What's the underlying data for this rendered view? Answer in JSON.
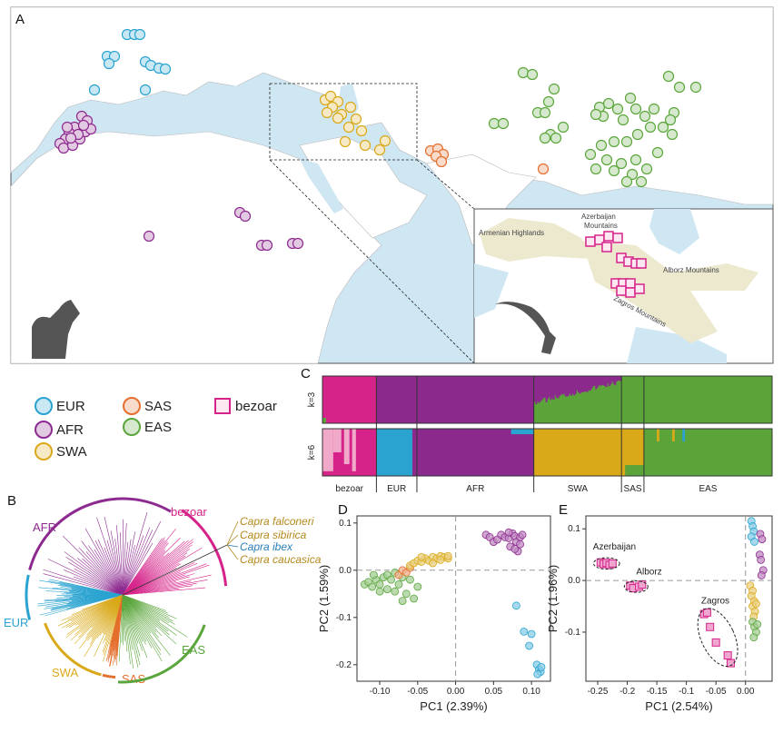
{
  "panels": {
    "a": "A",
    "b": "B",
    "c": "C",
    "d": "D",
    "e": "E"
  },
  "colors": {
    "EUR": "#2aa3d0",
    "AFR": "#8d2a8f",
    "SWA": "#d9a919",
    "SAS": "#e4702e",
    "EAS": "#5ba63c",
    "bezoar": "#d6238a",
    "bezoar_light": "#f0a9c8",
    "admix_afr": "#8b2a8c",
    "admix_green": "#5aa43a",
    "land": "#ffffff",
    "sea": "#cfe6f3",
    "highland": "#ece9cf"
  },
  "legend": {
    "items": [
      {
        "key": "EUR",
        "label": "EUR",
        "shape": "circle"
      },
      {
        "key": "AFR",
        "label": "AFR",
        "shape": "circle"
      },
      {
        "key": "SWA",
        "label": "SWA",
        "shape": "circle"
      },
      {
        "key": "SAS",
        "label": "SAS",
        "shape": "circle"
      },
      {
        "key": "EAS",
        "label": "EAS",
        "shape": "circle"
      },
      {
        "key": "bezoar",
        "label": "bezoar",
        "shape": "square"
      }
    ]
  },
  "map": {
    "inset_labels": {
      "armenian": "Armenian Highlands",
      "azerbaijan_1": "Azerbaijan",
      "azerbaijan_2": "Mountains",
      "alborz": "Alborz Mountains",
      "zagros": "Zagros Mountains"
    }
  },
  "chart_data": [
    {
      "type": "tree",
      "panel": "B",
      "clades": [
        "AFR",
        "bezoar",
        "EUR",
        "SWA",
        "SAS",
        "EAS"
      ],
      "outgroups": [
        {
          "label": "Capra falconeri",
          "color": "#b5891c"
        },
        {
          "label": "Capra sibirica",
          "color": "#b5891c"
        },
        {
          "label": "Capra ibex",
          "color": "#2a7fb8"
        },
        {
          "label": "Capra caucasica",
          "color": "#b5891c"
        }
      ]
    },
    {
      "type": "admixture",
      "panel": "C",
      "rows": [
        "k=3",
        "k=6"
      ],
      "groups": [
        {
          "label": "bezoar",
          "fraction": 0.12
        },
        {
          "label": "EUR",
          "fraction": 0.09
        },
        {
          "label": "AFR",
          "fraction": 0.26
        },
        {
          "label": "SWA",
          "fraction": 0.195
        },
        {
          "label": "SAS",
          "fraction": 0.05
        },
        {
          "label": "EAS",
          "fraction": 0.285
        }
      ]
    },
    {
      "type": "scatter",
      "panel": "D",
      "xlabel": "PC1 (2.39%)",
      "ylabel": "PC2 (1.59%)",
      "xlim": [
        -0.13,
        0.125
      ],
      "ylim": [
        -0.235,
        0.115
      ],
      "xticks": [
        "-0.10",
        "-0.05",
        "0.00",
        "0.05",
        "0.10"
      ],
      "xtick_values": [
        -0.1,
        -0.05,
        0.0,
        0.05,
        0.1
      ],
      "yticks": [
        "0.1",
        "0.0",
        "-0.1",
        "-0.2"
      ],
      "ytick_values": [
        0.1,
        0.0,
        -0.1,
        -0.2
      ],
      "clusters": [
        {
          "group": "EAS",
          "points": [
            [
              -0.12,
              -0.03
            ],
            [
              -0.115,
              -0.025
            ],
            [
              -0.11,
              -0.035
            ],
            [
              -0.105,
              -0.02
            ],
            [
              -0.1,
              -0.03
            ],
            [
              -0.095,
              -0.015
            ],
            [
              -0.09,
              -0.04
            ],
            [
              -0.09,
              -0.01
            ],
            [
              -0.085,
              -0.02
            ],
            [
              -0.08,
              -0.045
            ],
            [
              -0.08,
              -0.005
            ],
            [
              -0.075,
              -0.03
            ],
            [
              -0.07,
              -0.015
            ],
            [
              -0.065,
              -0.05
            ],
            [
              -0.06,
              -0.02
            ],
            [
              -0.055,
              -0.06
            ],
            [
              -0.05,
              -0.035
            ],
            [
              -0.1,
              -0.045
            ],
            [
              -0.108,
              -0.01
            ],
            [
              -0.07,
              -0.065
            ]
          ]
        },
        {
          "group": "SAS",
          "points": [
            [
              -0.075,
              -0.01
            ],
            [
              -0.07,
              0.0
            ],
            [
              -0.065,
              -0.005
            ],
            [
              -0.06,
              0.005
            ]
          ]
        },
        {
          "group": "SWA",
          "points": [
            [
              -0.06,
              0.01
            ],
            [
              -0.055,
              0.015
            ],
            [
              -0.05,
              0.02
            ],
            [
              -0.045,
              0.018
            ],
            [
              -0.04,
              0.025
            ],
            [
              -0.035,
              0.02
            ],
            [
              -0.03,
              0.028
            ],
            [
              -0.025,
              0.025
            ],
            [
              -0.02,
              0.03
            ],
            [
              -0.015,
              0.028
            ],
            [
              -0.01,
              0.025
            ],
            [
              -0.01,
              0.03
            ],
            [
              -0.045,
              0.028
            ],
            [
              -0.03,
              0.015
            ],
            [
              -0.02,
              0.022
            ]
          ]
        },
        {
          "group": "AFR",
          "points": [
            [
              0.04,
              0.075
            ],
            [
              0.045,
              0.07
            ],
            [
              0.05,
              0.06
            ],
            [
              0.055,
              0.065
            ],
            [
              0.06,
              0.075
            ],
            [
              0.065,
              0.07
            ],
            [
              0.07,
              0.068
            ],
            [
              0.072,
              0.05
            ],
            [
              0.075,
              0.078
            ],
            [
              0.078,
              0.072
            ],
            [
              0.08,
              0.06
            ],
            [
              0.082,
              0.04
            ],
            [
              0.085,
              0.07
            ],
            [
              0.085,
              0.055
            ],
            [
              0.088,
              0.075
            ],
            [
              0.07,
              0.08
            ],
            [
              0.078,
              0.045
            ]
          ]
        },
        {
          "group": "EUR",
          "points": [
            [
              0.08,
              -0.075
            ],
            [
              0.09,
              -0.13
            ],
            [
              0.1,
              -0.135
            ],
            [
              0.097,
              -0.16
            ],
            [
              0.107,
              -0.2
            ],
            [
              0.11,
              -0.21
            ],
            [
              0.112,
              -0.215
            ],
            [
              0.108,
              -0.22
            ],
            [
              0.113,
              -0.205
            ]
          ]
        }
      ]
    },
    {
      "type": "scatter",
      "panel": "E",
      "ylabel": "PC2 (1.96%)",
      "xlabel": "PC1 (2.54%)",
      "xlim": [
        -0.27,
        0.045
      ],
      "ylim": [
        -0.195,
        0.125
      ],
      "xticks": [
        "-0.25",
        "-0.2",
        "-0.15",
        "-0.1",
        "-0.05",
        "0.00"
      ],
      "xtick_values": [
        -0.25,
        -0.2,
        -0.15,
        -0.1,
        -0.05,
        0.0
      ],
      "yticks": [
        "0.1",
        "0.0",
        "-0.1"
      ],
      "ytick_values": [
        0.1,
        0.0,
        -0.1
      ],
      "annotations": [
        "Azerbaijan",
        "Alborz",
        "Zagros"
      ],
      "clusters": [
        {
          "group": "bezoar",
          "points": [
            [
              -0.245,
              0.035
            ],
            [
              -0.24,
              0.032
            ],
            [
              -0.235,
              0.034
            ],
            [
              -0.23,
              0.03
            ],
            [
              -0.225,
              0.033
            ],
            [
              -0.195,
              -0.01
            ],
            [
              -0.19,
              -0.015
            ],
            [
              -0.18,
              -0.012
            ],
            [
              -0.175,
              -0.008
            ],
            [
              -0.07,
              -0.065
            ],
            [
              -0.065,
              -0.062
            ],
            [
              -0.06,
              -0.09
            ],
            [
              -0.05,
              -0.12
            ],
            [
              -0.03,
              -0.145
            ],
            [
              -0.025,
              -0.16
            ]
          ]
        },
        {
          "group": "EUR",
          "points": [
            [
              0.01,
              0.115
            ],
            [
              0.012,
              0.105
            ],
            [
              0.014,
              0.095
            ],
            [
              0.01,
              0.085
            ],
            [
              0.015,
              0.075
            ]
          ]
        },
        {
          "group": "AFR",
          "points": [
            [
              0.025,
              0.09
            ],
            [
              0.028,
              0.08
            ],
            [
              0.024,
              0.05
            ],
            [
              0.026,
              0.04
            ],
            [
              0.03,
              0.02
            ],
            [
              0.027,
              0.01
            ]
          ]
        },
        {
          "group": "SWA",
          "points": [
            [
              0.008,
              -0.01
            ],
            [
              0.012,
              -0.02
            ],
            [
              0.01,
              -0.03
            ],
            [
              0.015,
              -0.04
            ],
            [
              0.012,
              -0.05
            ],
            [
              0.016,
              -0.06
            ],
            [
              0.014,
              -0.07
            ],
            [
              0.018,
              -0.045
            ]
          ]
        },
        {
          "group": "EAS",
          "points": [
            [
              0.012,
              -0.08
            ],
            [
              0.015,
              -0.09
            ],
            [
              0.018,
              -0.1
            ],
            [
              0.014,
              -0.11
            ],
            [
              0.02,
              -0.085
            ]
          ]
        }
      ]
    }
  ]
}
